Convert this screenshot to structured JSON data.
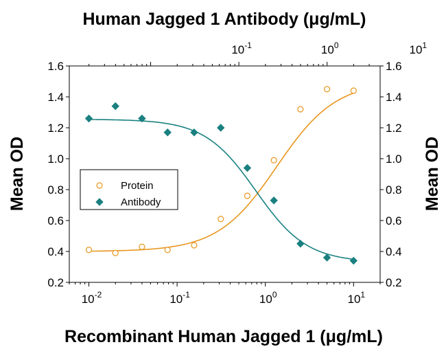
{
  "chart_data": {
    "type": "scatter",
    "top_title": "Human Jagged 1 Antibody (μg/mL)",
    "xlabel": "Recombinant Human Jagged 1 (μg/mL)",
    "ylabel_left": "Mean OD",
    "ylabel_right": "Mean OD",
    "x_scale": "log",
    "xlim": [
      0.006,
      20
    ],
    "ylim": [
      0.2,
      1.6
    ],
    "y_ticks": [
      "0.2",
      "0.4",
      "0.6",
      "0.8",
      "1.0",
      "1.2",
      "1.4",
      "1.6"
    ],
    "x_ticks_bottom": [
      {
        "base": "10",
        "exp": "-2"
      },
      {
        "base": "10",
        "exp": "-1"
      },
      {
        "base": "10",
        "exp": "0"
      },
      {
        "base": "10",
        "exp": "1"
      }
    ],
    "x_ticks_top": [
      {
        "base": "10",
        "exp": "-1"
      },
      {
        "base": "10",
        "exp": "0"
      },
      {
        "base": "10",
        "exp": "1"
      }
    ],
    "top_axis_offset_decades": 0.7,
    "legend_position": "center-left",
    "series": [
      {
        "name": "Protein",
        "marker": "open-circle",
        "color": "#e8961e",
        "x": [
          0.01,
          0.02,
          0.04,
          0.078,
          0.156,
          0.3125,
          0.625,
          1.25,
          2.5,
          5,
          10
        ],
        "y": [
          0.41,
          0.39,
          0.43,
          0.41,
          0.44,
          0.61,
          0.76,
          0.99,
          1.32,
          1.45,
          1.44
        ],
        "fit": {
          "bottom": 0.4,
          "top": 1.5,
          "ec50": 1.35,
          "hill": 1.3
        }
      },
      {
        "name": "Antibody",
        "marker": "filled-diamond",
        "color": "#1a8080",
        "x": [
          0.01,
          0.02,
          0.04,
          0.078,
          0.156,
          0.3125,
          0.625,
          1.25,
          2.5,
          5,
          10
        ],
        "y": [
          1.26,
          1.34,
          1.26,
          1.17,
          1.17,
          1.2,
          0.94,
          0.73,
          0.45,
          0.36,
          0.34
        ],
        "fit": {
          "bottom": 0.33,
          "top": 1.255,
          "ec50": 0.78,
          "hill": -1.5
        }
      }
    ]
  }
}
